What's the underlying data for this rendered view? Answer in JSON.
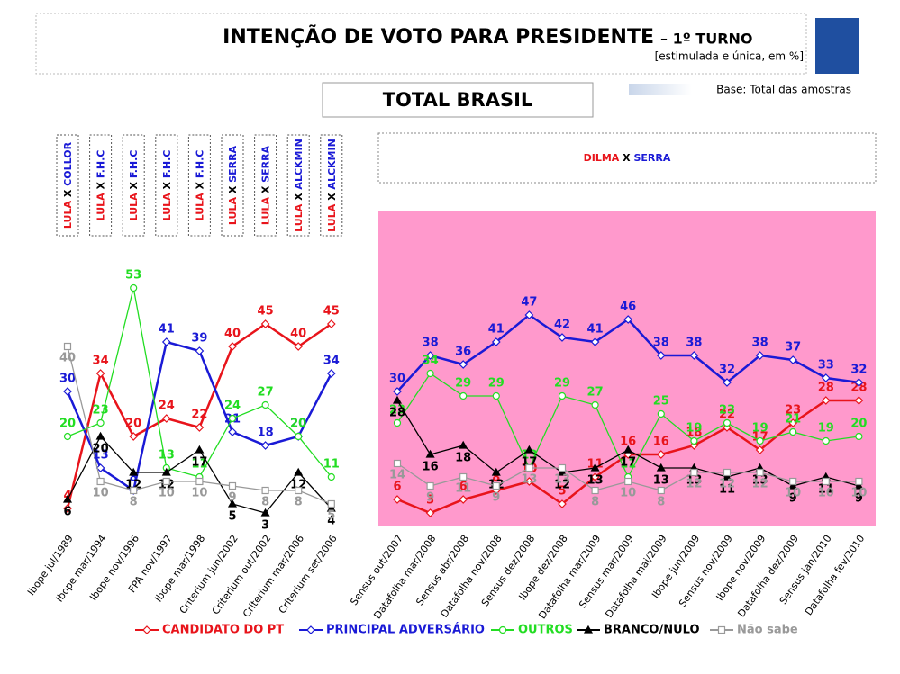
{
  "header": {
    "title": "INTENÇÃO DE VOTO PARA PRESIDENTE",
    "round": "– 1º TURNO",
    "subtitle": "[estimulada e única, em %]",
    "section": "TOTAL BRASIL",
    "base": "Base: Total das amostras"
  },
  "matchups": [
    {
      "a": "LULA",
      "x": "X",
      "b": "COLLOR"
    },
    {
      "a": "LULA",
      "x": "X",
      "b": "F.H.C"
    },
    {
      "a": "LULA",
      "x": "X",
      "b": "F.H.C"
    },
    {
      "a": "LULA",
      "x": "X",
      "b": "F.H.C"
    },
    {
      "a": "LULA",
      "x": "X",
      "b": "F.H.C"
    },
    {
      "a": "LULA",
      "x": "X",
      "b": "SERRA"
    },
    {
      "a": "LULA",
      "x": "X",
      "b": "SERRA"
    },
    {
      "a": "LULA",
      "x": "X",
      "b": "ALCKMIN"
    },
    {
      "a": "LULA",
      "x": "X",
      "b": "ALCKMIN"
    }
  ],
  "main_matchup": {
    "a": "DILMA",
    "x": "X",
    "b": "SERRA"
  },
  "chart_data": {
    "type": "line",
    "ylim": [
      0,
      70
    ],
    "categories": [
      "Ibope jul/1989",
      "Ibope mar/1994",
      "Ibope nov/1996",
      "FPA nov/1997",
      "Ibope mar/1998",
      "Criterium jun/2002",
      "Criterium out/2002",
      "Criterium mar/2006",
      "Criterium set/2006",
      null,
      "Sensus out/2007",
      "Datafolha mar/2008",
      "Sensus abr/2008",
      "Datafolha nov/2008",
      "Sensus dez/2008",
      "Ibope dez/2008",
      "Datafolha mar/2009",
      "Sensus mar/2009",
      "Datafolha mai/2009",
      "Ibope jun/2009",
      "Sensus nov/2009",
      "Ibope nov/2009",
      "Datafolha dez/2009",
      "Sensus jan/2010",
      "Datafolha fev/2010"
    ],
    "series": [
      {
        "name": "CANDIDATO DO PT",
        "color": "#e8141b",
        "marker": "diamond",
        "values": [
          4,
          34,
          20,
          24,
          22,
          40,
          45,
          40,
          45,
          null,
          6,
          3,
          6,
          8,
          10,
          5,
          11,
          16,
          16,
          18,
          22,
          17,
          23,
          28,
          28
        ]
      },
      {
        "name": "PRINCIPAL ADVERSÁRIO",
        "color": "#1a1ad6",
        "marker": "diamond",
        "values": [
          30,
          13,
          8,
          41,
          39,
          21,
          18,
          20,
          34,
          null,
          30,
          38,
          36,
          41,
          47,
          42,
          41,
          46,
          38,
          38,
          32,
          38,
          37,
          33,
          32
        ]
      },
      {
        "name": "OUTROS",
        "color": "#22dd22",
        "marker": "circle",
        "values": [
          20,
          23,
          53,
          13,
          11,
          24,
          27,
          20,
          11,
          null,
          23,
          34,
          29,
          29,
          13,
          29,
          27,
          11,
          25,
          19,
          23,
          19,
          21,
          19,
          20
        ]
      },
      {
        "name": "BRANCO/NULO",
        "color": "#000000",
        "marker": "triangle",
        "values": [
          6,
          20,
          12,
          12,
          17,
          5,
          3,
          12,
          4,
          null,
          28,
          16,
          18,
          12,
          17,
          12,
          13,
          17,
          13,
          13,
          11,
          13,
          9,
          11,
          9
        ]
      },
      {
        "name": "Não sabe",
        "color": "#999999",
        "marker": "square",
        "values": [
          40,
          10,
          8,
          10,
          10,
          9,
          8,
          8,
          5,
          null,
          14,
          9,
          11,
          9,
          13,
          13,
          8,
          10,
          8,
          12,
          12,
          12,
          10,
          10,
          10
        ]
      }
    ]
  }
}
